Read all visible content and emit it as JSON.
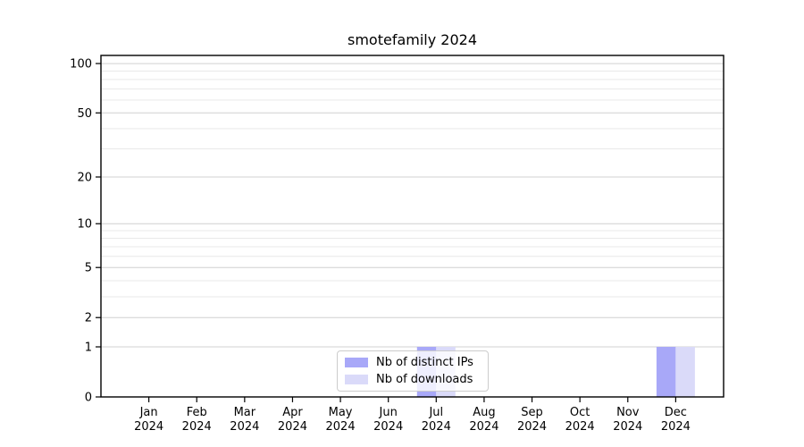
{
  "chart_data": {
    "type": "bar",
    "title": "smotefamily 2024",
    "categories": [
      "Jan 2024",
      "Feb 2024",
      "Mar 2024",
      "Apr 2024",
      "May 2024",
      "Jun 2024",
      "Jul 2024",
      "Aug 2024",
      "Sep 2024",
      "Oct 2024",
      "Nov 2024",
      "Dec 2024"
    ],
    "series": [
      {
        "name": "Nb of distinct IPs",
        "color": "#a8a8f8",
        "values": [
          0,
          0,
          0,
          0,
          0,
          0,
          1,
          0,
          0,
          0,
          0,
          1
        ]
      },
      {
        "name": "Nb of downloads",
        "color": "#dadaf9",
        "values": [
          0,
          0,
          0,
          0,
          0,
          0,
          1,
          0,
          0,
          0,
          0,
          1
        ]
      }
    ],
    "yscale": "log1p",
    "yticks": [
      0,
      1,
      2,
      5,
      10,
      20,
      50,
      100
    ],
    "minor_yticks": [
      3,
      4,
      6,
      7,
      8,
      9,
      30,
      40,
      60,
      70,
      80,
      90
    ],
    "ylim": [
      0,
      112
    ],
    "xlabel": "",
    "ylabel": "",
    "grid": true,
    "legend_position": "bottom-center"
  },
  "colors": {
    "major_grid": "#d0d0d0",
    "minor_grid": "#e9e9e9",
    "axis": "#000000",
    "background": "#ffffff"
  }
}
